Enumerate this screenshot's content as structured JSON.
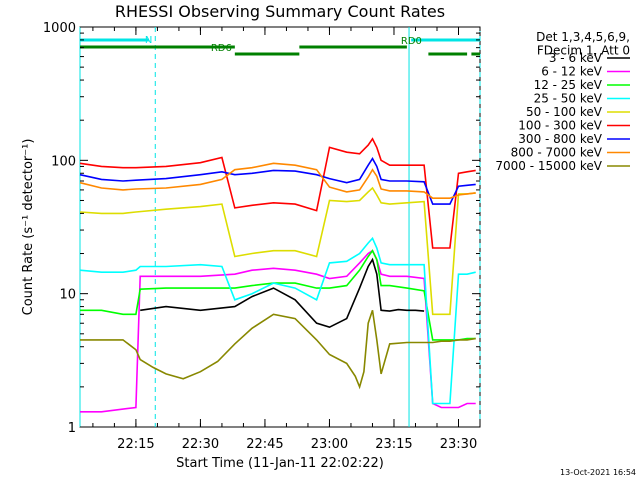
{
  "chart_data": {
    "type": "line",
    "title": "RHESSI Observing Summary Count Rates",
    "xlabel": "Start Time (11-Jan-11 22:02:22)",
    "ylabel": "Count Rate (s⁻¹ detector⁻¹)",
    "yscale": "log",
    "ylim": [
      1,
      1000
    ],
    "xlim_minutes": [
      0,
      93
    ],
    "x_ticks": [
      {
        "minute": 13,
        "label": "22:15"
      },
      {
        "minute": 28,
        "label": "22:30"
      },
      {
        "minute": 43,
        "label": "22:45"
      },
      {
        "minute": 58,
        "label": "23:00"
      },
      {
        "minute": 73,
        "label": "23:15"
      },
      {
        "minute": 88,
        "label": "23:30"
      }
    ],
    "y_ticks": [
      {
        "value": 1,
        "label": "1"
      },
      {
        "value": 10,
        "label": "10"
      },
      {
        "value": 100,
        "label": "100"
      },
      {
        "value": 1000,
        "label": "1000"
      }
    ],
    "legend_header": [
      "Det 1,3,4,5,6,9,",
      "FDecim 1, Att 0"
    ],
    "legend_placement": "right",
    "series": [
      {
        "name": "3 - 6 keV",
        "color": "#000000",
        "x": [
          0,
          13,
          14,
          20,
          28,
          36,
          40,
          45,
          50,
          55,
          58,
          62,
          65,
          67,
          68,
          69,
          70,
          72,
          74,
          76,
          78,
          80,
          82,
          84,
          86,
          88,
          90,
          92
        ],
        "y": [
          null,
          null,
          7.5,
          8,
          7.5,
          8,
          9.5,
          11,
          9,
          6,
          5.6,
          6.5,
          11,
          16,
          18,
          14,
          7.5,
          7.4,
          7.6,
          7.5,
          7.5,
          7.4,
          null,
          null,
          null,
          null,
          null,
          null
        ]
      },
      {
        "name": "6 - 12 keV",
        "color": "#ff00ff",
        "x": [
          0,
          5,
          13,
          14,
          20,
          28,
          36,
          40,
          45,
          50,
          55,
          58,
          62,
          65,
          67,
          68,
          69,
          70,
          72,
          76,
          80,
          82,
          84,
          86,
          88,
          90,
          92
        ],
        "y": [
          1.3,
          1.3,
          1.4,
          13.5,
          13.5,
          13.5,
          14,
          15,
          15.5,
          15,
          14,
          13,
          13.5,
          17,
          20,
          21,
          18,
          14,
          13.5,
          13.5,
          13,
          1.5,
          1.4,
          1.4,
          1.4,
          1.5,
          1.5
        ]
      },
      {
        "name": "12 - 25 keV",
        "color": "#00ff00",
        "x": [
          0,
          5,
          10,
          13,
          14,
          20,
          28,
          36,
          40,
          45,
          50,
          55,
          58,
          62,
          65,
          67,
          68,
          69,
          70,
          72,
          76,
          80,
          82,
          84,
          86,
          88,
          90,
          92
        ],
        "y": [
          7.5,
          7.5,
          7,
          7,
          10.8,
          11,
          11,
          11,
          11.5,
          12,
          12,
          11,
          11,
          11.5,
          15,
          19,
          21,
          18,
          11.5,
          11.5,
          11,
          10.5,
          4.5,
          4.5,
          4.5,
          4.5,
          4.6,
          4.6
        ]
      },
      {
        "name": "25 - 50 keV",
        "color": "#00ffff",
        "x": [
          0,
          5,
          10,
          13,
          14,
          20,
          28,
          33,
          36,
          40,
          45,
          50,
          55,
          58,
          62,
          65,
          67,
          68,
          69,
          70,
          72,
          76,
          80,
          82,
          84,
          86,
          88,
          90,
          92
        ],
        "y": [
          15,
          14.5,
          14.5,
          15,
          16,
          16,
          16.5,
          16,
          9,
          10,
          12,
          11,
          9,
          17,
          17.5,
          20,
          24,
          26,
          22,
          17,
          16.5,
          16.5,
          16.5,
          1.5,
          1.5,
          1.5,
          14,
          14,
          14.5
        ]
      },
      {
        "name": "50 - 100 keV",
        "color": "#dddd00",
        "x": [
          0,
          5,
          10,
          13,
          20,
          28,
          33,
          36,
          40,
          45,
          50,
          55,
          58,
          62,
          65,
          67,
          68,
          69,
          70,
          72,
          76,
          80,
          82,
          84,
          86,
          88,
          90,
          92
        ],
        "y": [
          41,
          40,
          40,
          41,
          43,
          45,
          47,
          19,
          20,
          21,
          21,
          19,
          50,
          49,
          50,
          58,
          62,
          55,
          48,
          47,
          48,
          49,
          7,
          7,
          7,
          56,
          56,
          57
        ]
      },
      {
        "name": "100 - 300 keV",
        "color": "#ff0000",
        "x": [
          0,
          5,
          10,
          13,
          20,
          28,
          33,
          36,
          40,
          45,
          50,
          55,
          58,
          62,
          65,
          67,
          68,
          69,
          70,
          72,
          76,
          80,
          82,
          84,
          86,
          88,
          90,
          92
        ],
        "y": [
          95,
          90,
          88,
          88,
          90,
          96,
          105,
          44,
          46,
          48,
          47,
          42,
          125,
          115,
          112,
          130,
          145,
          125,
          100,
          92,
          92,
          92,
          22,
          22,
          22,
          80,
          82,
          84
        ]
      },
      {
        "name": "300 - 800 keV",
        "color": "#0000ff",
        "x": [
          0,
          5,
          10,
          13,
          20,
          28,
          33,
          36,
          40,
          45,
          50,
          55,
          58,
          62,
          65,
          67,
          68,
          69,
          70,
          72,
          76,
          80,
          82,
          84,
          86,
          88,
          90,
          92
        ],
        "y": [
          78,
          72,
          70,
          71,
          73,
          78,
          82,
          78,
          80,
          84,
          83,
          78,
          73,
          68,
          72,
          92,
          103,
          90,
          72,
          70,
          70,
          69,
          47,
          47,
          47,
          64,
          65,
          66
        ]
      },
      {
        "name": "800 - 7000 keV",
        "color": "#ff8800",
        "x": [
          0,
          5,
          10,
          13,
          20,
          28,
          33,
          36,
          40,
          45,
          50,
          55,
          58,
          62,
          65,
          67,
          68,
          69,
          70,
          72,
          76,
          80,
          82,
          84,
          86,
          88,
          90,
          92
        ],
        "y": [
          68,
          62,
          60,
          61,
          62,
          66,
          72,
          85,
          88,
          95,
          92,
          85,
          63,
          58,
          60,
          75,
          85,
          76,
          61,
          59,
          59,
          58,
          52,
          52,
          52,
          55,
          56,
          57
        ]
      },
      {
        "name": "7000 - 15000 keV",
        "color": "#888800",
        "x": [
          0,
          5,
          10,
          13,
          14,
          17,
          20,
          24,
          28,
          32,
          36,
          40,
          45,
          50,
          55,
          58,
          62,
          64,
          65,
          66,
          67,
          68,
          69,
          70,
          72,
          76,
          80,
          82,
          84,
          86,
          88,
          90,
          92
        ],
        "y": [
          4.5,
          4.5,
          4.5,
          3.8,
          3.2,
          2.8,
          2.5,
          2.3,
          2.6,
          3.1,
          4.2,
          5.5,
          7,
          6.5,
          4.5,
          3.5,
          3,
          2.4,
          2,
          2.6,
          6,
          7.5,
          4.5,
          2.5,
          4.2,
          4.3,
          4.3,
          4.3,
          4.4,
          4.4,
          4.5,
          4.5,
          4.6
        ]
      }
    ],
    "flags": [
      {
        "label": "N",
        "color": "#00e5e5",
        "segments": [
          [
            0,
            16
          ],
          [
            77,
            93
          ]
        ]
      },
      {
        "label": "RD0",
        "color": "#008000",
        "segments": [
          [
            0,
            36
          ],
          [
            51,
            76
          ]
        ]
      },
      {
        "label": "RD6",
        "color": "#008000",
        "segments": [
          [
            36,
            51
          ],
          [
            81,
            90
          ],
          [
            91,
            93
          ]
        ]
      }
    ],
    "vertical_markers": [
      {
        "minute": 0,
        "style": "solid",
        "color": "#00e5e5"
      },
      {
        "minute": 17.5,
        "style": "dashed",
        "color": "#00e5e5"
      },
      {
        "minute": 76.5,
        "style": "solid",
        "color": "#00e5e5"
      },
      {
        "minute": 93,
        "style": "dashed",
        "color": "#00e5e5"
      }
    ],
    "grid": false
  },
  "footer_timestamp": "13-Oct-2021 16:54"
}
